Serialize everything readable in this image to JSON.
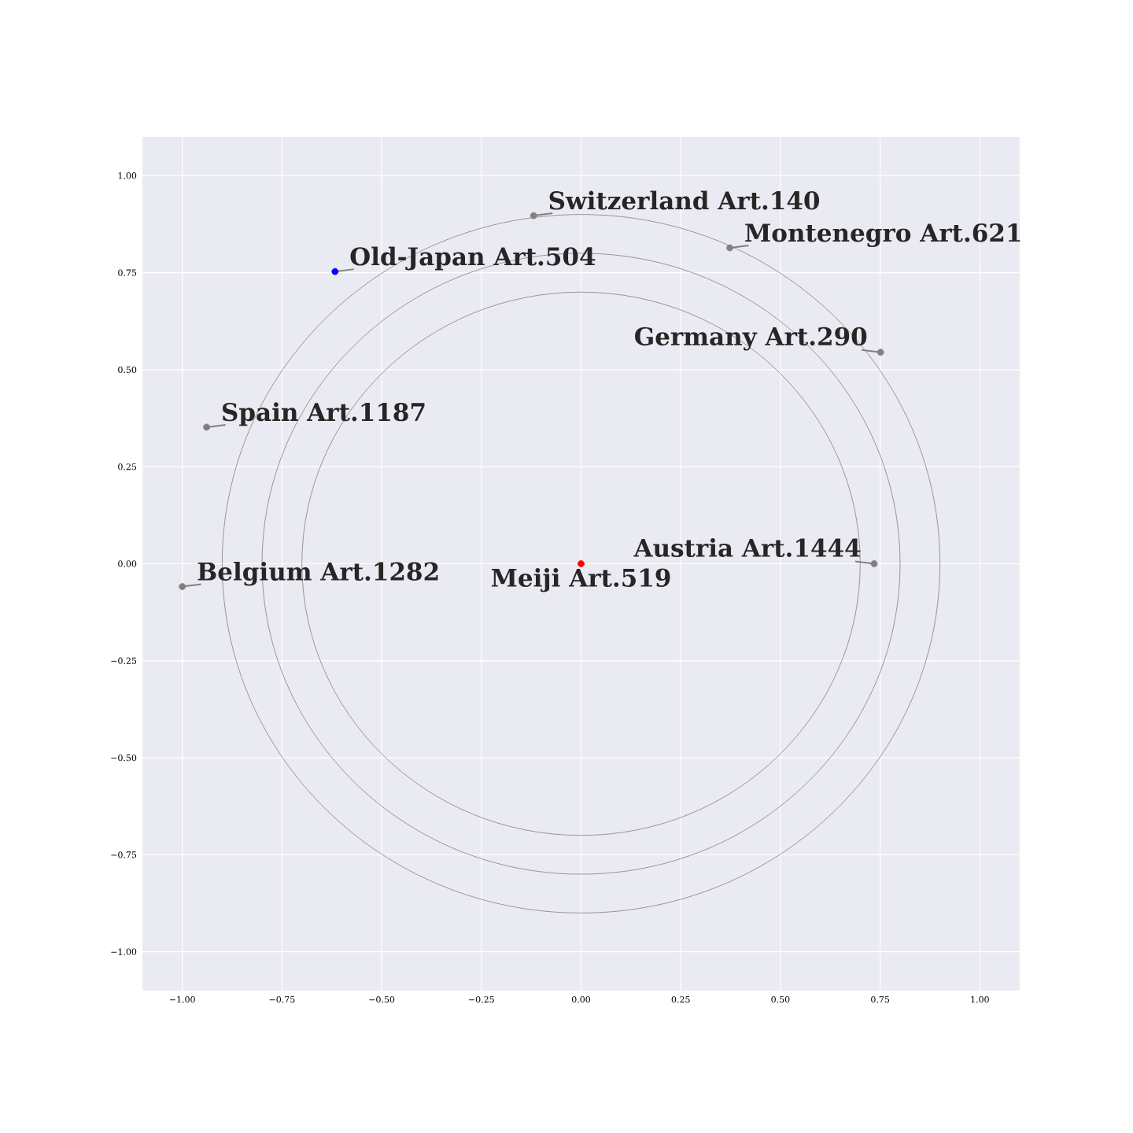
{
  "chart_data": {
    "type": "scatter",
    "xlim": [
      -1.1,
      1.1
    ],
    "ylim": [
      -1.1,
      1.1
    ],
    "xticks": [
      {
        "value": -1,
        "label": "−1.00"
      },
      {
        "value": -0.75,
        "label": "−0.75"
      },
      {
        "value": -0.5,
        "label": "−0.50"
      },
      {
        "value": -0.25,
        "label": "−0.25"
      },
      {
        "value": 0,
        "label": "0.00"
      },
      {
        "value": 0.25,
        "label": "0.25"
      },
      {
        "value": 0.5,
        "label": "0.50"
      },
      {
        "value": 0.75,
        "label": "0.75"
      },
      {
        "value": 1,
        "label": "1.00"
      }
    ],
    "yticks": [
      {
        "value": -1,
        "label": "−1.00"
      },
      {
        "value": -0.75,
        "label": "−0.75"
      },
      {
        "value": -0.5,
        "label": "−0.50"
      },
      {
        "value": -0.25,
        "label": "−0.25"
      },
      {
        "value": 0,
        "label": "0.00"
      },
      {
        "value": 0.25,
        "label": "0.25"
      },
      {
        "value": 0.5,
        "label": "0.50"
      },
      {
        "value": 0.75,
        "label": "0.75"
      },
      {
        "value": 1,
        "label": "1.00"
      }
    ],
    "grid": true,
    "series": [
      {
        "type": "scatter",
        "x": [
          -0.119,
          0.373,
          -0.617,
          0.751,
          -0.939,
          -1.0,
          0.735,
          0
        ],
        "values": [
          0.897,
          0.814,
          0.753,
          0.545,
          0.352,
          -0.059,
          0.0,
          0
        ],
        "colors": [
          "#808080",
          "#808080",
          "#0000ff",
          "#808080",
          "#808080",
          "#808080",
          "#808080",
          "#ff0000"
        ]
      }
    ],
    "annotations": [
      {
        "text": "Switzerland Art.140",
        "x": -0.119,
        "y": 0.897
      },
      {
        "text": "Montenegro Art.621",
        "x": 0.373,
        "y": 0.814
      },
      {
        "text": "Old-Japan Art.504",
        "x": -0.617,
        "y": 0.753
      },
      {
        "text": "Germany Art.290",
        "x": 0.751,
        "y": 0.545
      },
      {
        "text": "Spain Art.1187",
        "x": -0.939,
        "y": 0.352
      },
      {
        "text": "Belgium Art.1282",
        "x": -1.0,
        "y": -0.059
      },
      {
        "text": "Austria Art.1444",
        "x": 0.735,
        "y": 0.0
      },
      {
        "text": "Meiji Art.519",
        "x": 0,
        "y": 0
      }
    ]
  }
}
